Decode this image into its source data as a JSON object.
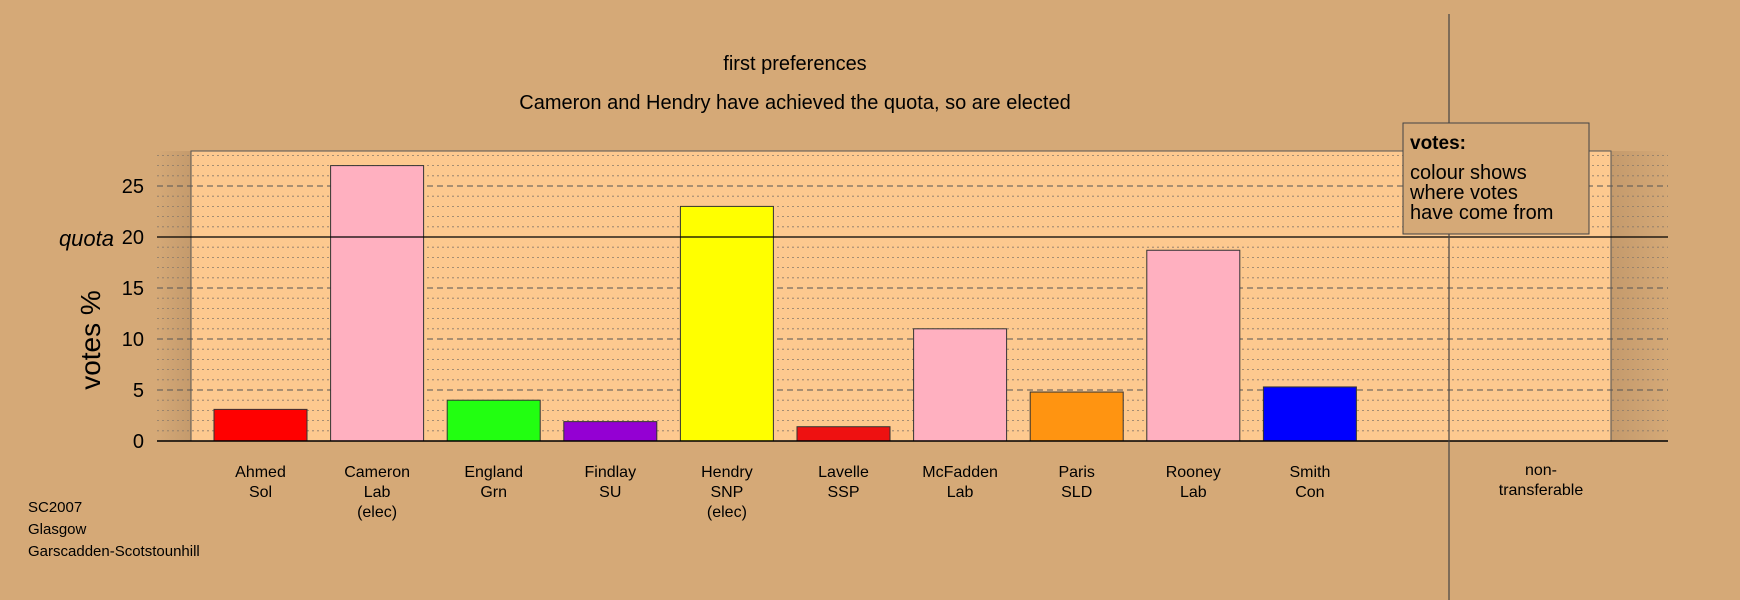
{
  "chart_data": {
    "type": "bar",
    "title": "first preferences",
    "subtitle": "Cameron and Hendry have achieved the quota, so are elected",
    "ylabel": "votes %",
    "ylim": [
      0,
      28.5
    ],
    "yticks": [
      0,
      5,
      10,
      15,
      20,
      25
    ],
    "quota": 20,
    "quota_label": "quota",
    "grid": true,
    "categories": [
      {
        "name": "Ahmed",
        "party": "Sol",
        "note": ""
      },
      {
        "name": "Cameron",
        "party": "Lab",
        "note": "(elec)"
      },
      {
        "name": "England",
        "party": "Grn",
        "note": ""
      },
      {
        "name": "Findlay",
        "party": "SU",
        "note": ""
      },
      {
        "name": "Hendry",
        "party": "SNP",
        "note": "(elec)"
      },
      {
        "name": "Lavelle",
        "party": "SSP",
        "note": ""
      },
      {
        "name": "McFadden",
        "party": "Lab",
        "note": ""
      },
      {
        "name": "Paris",
        "party": "SLD",
        "note": ""
      },
      {
        "name": "Rooney",
        "party": "Lab",
        "note": ""
      },
      {
        "name": "Smith",
        "party": "Con",
        "note": ""
      }
    ],
    "values": [
      3.1,
      27.0,
      4.0,
      1.9,
      23.0,
      1.4,
      11.0,
      4.8,
      18.7,
      5.3
    ],
    "colors": [
      "#ff0000",
      "#ffb0c0",
      "#22ff11",
      "#9400d3",
      "#ffff00",
      "#ee1111",
      "#ffb0c0",
      "#ff9411",
      "#ffb0c0",
      "#0000ff"
    ],
    "nontransferable": {
      "label_line1": "non-",
      "label_line2": "transferable",
      "value": 0
    },
    "legend": {
      "title": "votes:",
      "lines": [
        "colour shows",
        "where votes",
        "have come from"
      ],
      "placement": "top-right"
    },
    "colors_theme": {
      "background": "#d5a977",
      "plot_area": "#fdc98f"
    }
  },
  "footer": {
    "line1": "SC2007",
    "line2": "Glasgow",
    "line3": "Garscadden-Scotstounhill"
  }
}
